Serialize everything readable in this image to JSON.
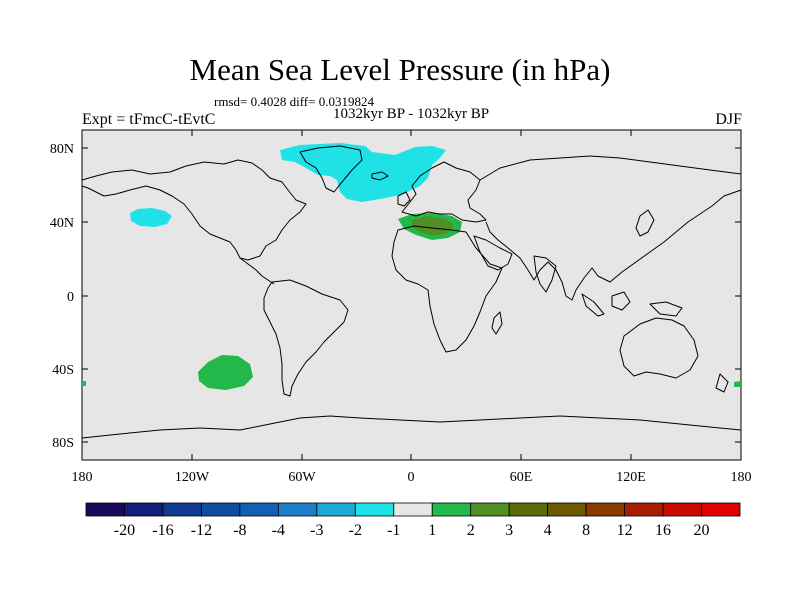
{
  "title": "Mean Sea Level Pressure (in hPa)",
  "stats": "rmsd= 0.4028  diff= 0.0319824",
  "period": "1032kyr BP - 1032kyr BP",
  "experiment": "Expt = tFmcC-tEvtC",
  "season": "DJF",
  "lat_ticks": [
    "80N",
    "40N",
    "0",
    "40S",
    "80S"
  ],
  "lon_ticks": [
    "180",
    "120W",
    "60W",
    "0",
    "60E",
    "120E",
    "180"
  ],
  "colorbar": {
    "labels": [
      "-20",
      "-16",
      "-12",
      "-8",
      "-4",
      "-3",
      "-2",
      "-1",
      "1",
      "2",
      "3",
      "4",
      "8",
      "12",
      "16",
      "20"
    ],
    "colors": [
      "#1a0a5e",
      "#0f1f7a",
      "#103a8f",
      "#0f4ea3",
      "#1060b5",
      "#1a7fc8",
      "#1da9d8",
      "#1ee2e6",
      "#e6e6e6",
      "#23b84a",
      "#4f8f24",
      "#5a6b0c",
      "#6b5a00",
      "#8a3c00",
      "#a81e00",
      "#c80a00",
      "#e00000"
    ]
  },
  "colors": {
    "ocean": "#e6e6e6",
    "coast": "#000000",
    "neg_anomaly": "#1ee2e6",
    "pos_anomaly": "#23b84a",
    "pos_anomaly_strong": "#4f8f24"
  }
}
